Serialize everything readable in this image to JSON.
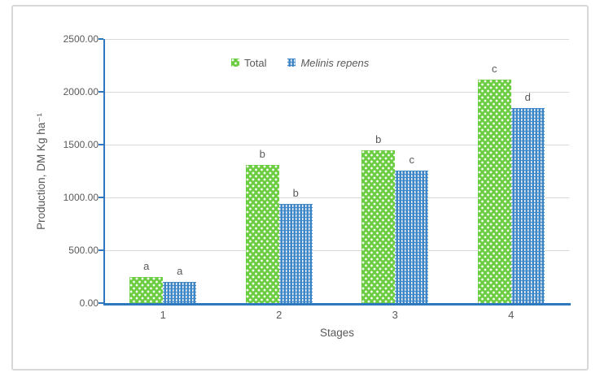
{
  "chart_data": {
    "type": "bar",
    "title": "",
    "categories": [
      "1",
      "2",
      "3",
      "4"
    ],
    "xlabel": "Stages",
    "ylabel": "Production, DM Kg  ha⁻¹",
    "ylim": [
      0,
      2500
    ],
    "yticks": [
      {
        "value": 0,
        "label": "0.00"
      },
      {
        "value": 500,
        "label": "500.00"
      },
      {
        "value": 1000,
        "label": "1000.00"
      },
      {
        "value": 1500,
        "label": "1500.00"
      },
      {
        "value": 2000,
        "label": "2000.00"
      },
      {
        "value": 2500,
        "label": "2500.00"
      }
    ],
    "grid": true,
    "legend_position": "top-center",
    "series": [
      {
        "name": "Total",
        "italic": false,
        "color": "#6ccd43",
        "pattern": "dots",
        "values": [
          245,
          1305,
          1450,
          2115
        ],
        "sig_letters": [
          "a",
          "b",
          "b",
          "c"
        ]
      },
      {
        "name": "Melinis repens",
        "italic": true,
        "color": "#3e86c6",
        "pattern": "vertical-dashes",
        "values": [
          200,
          940,
          1255,
          1845
        ],
        "sig_letters": [
          "a",
          "b",
          "c",
          "d"
        ]
      }
    ]
  },
  "style_colors": {
    "axis_line": "#2e79be",
    "gridline": "#d9d9d9",
    "text": "#595959",
    "chart_border": "#d7d7d7",
    "background": "#ffffff"
  }
}
